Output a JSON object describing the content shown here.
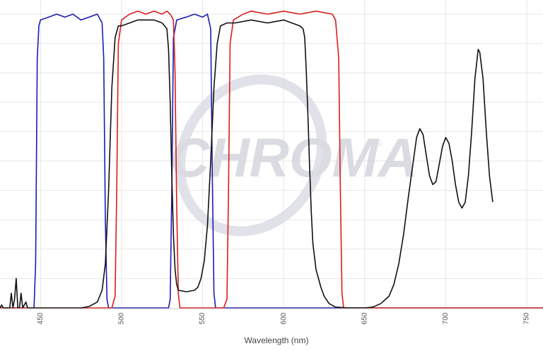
{
  "chart_data": {
    "type": "line",
    "xlabel": "Wavelength (nm)",
    "ylabel": "",
    "xlim": [
      425,
      760
    ],
    "ylim": [
      0,
      100
    ],
    "grid": true,
    "x_ticks": [
      {
        "value": 450,
        "label": "450"
      },
      {
        "value": 500,
        "label": "500"
      },
      {
        "value": 550,
        "label": "550"
      },
      {
        "value": 600,
        "label": "600"
      },
      {
        "value": 650,
        "label": "650"
      },
      {
        "value": 700,
        "label": "700"
      },
      {
        "value": 750,
        "label": "750"
      }
    ],
    "y_gridlines": [
      10,
      20,
      30,
      40,
      50,
      60,
      70,
      80,
      90,
      100
    ],
    "series": [
      {
        "color": "#1c1cb0",
        "points": [
          [
            425,
            0
          ],
          [
            446,
            0
          ],
          [
            447,
            15
          ],
          [
            448,
            85
          ],
          [
            449,
            96
          ],
          [
            450,
            98
          ],
          [
            455,
            99
          ],
          [
            460,
            100
          ],
          [
            465,
            99
          ],
          [
            470,
            100
          ],
          [
            475,
            98
          ],
          [
            480,
            99
          ],
          [
            485,
            100
          ],
          [
            488,
            97
          ],
          [
            489,
            85
          ],
          [
            490,
            30
          ],
          [
            491,
            3
          ],
          [
            492,
            0
          ],
          [
            529,
            0
          ],
          [
            530,
            3
          ],
          [
            531,
            40
          ],
          [
            532,
            92
          ],
          [
            534,
            98
          ],
          [
            540,
            99
          ],
          [
            545,
            100
          ],
          [
            550,
            99
          ],
          [
            553,
            100
          ],
          [
            555,
            95
          ],
          [
            556,
            45
          ],
          [
            557,
            5
          ],
          [
            558,
            0
          ],
          [
            760,
            0
          ]
        ]
      },
      {
        "color": "#dd1c1c",
        "points": [
          [
            425,
            0
          ],
          [
            494,
            0
          ],
          [
            496,
            4
          ],
          [
            497,
            40
          ],
          [
            498,
            90
          ],
          [
            500,
            98
          ],
          [
            505,
            100
          ],
          [
            510,
            101
          ],
          [
            515,
            100
          ],
          [
            520,
            101
          ],
          [
            525,
            100
          ],
          [
            528,
            101
          ],
          [
            530,
            100
          ],
          [
            532,
            98
          ],
          [
            533,
            80
          ],
          [
            534,
            35
          ],
          [
            535,
            5
          ],
          [
            536,
            0
          ],
          [
            563,
            0
          ],
          [
            565,
            3
          ],
          [
            566,
            40
          ],
          [
            567,
            90
          ],
          [
            569,
            98
          ],
          [
            575,
            100
          ],
          [
            580,
            101
          ],
          [
            590,
            100
          ],
          [
            600,
            101
          ],
          [
            610,
            100
          ],
          [
            620,
            101
          ],
          [
            630,
            100
          ],
          [
            632,
            98
          ],
          [
            634,
            85
          ],
          [
            635,
            40
          ],
          [
            636,
            5
          ],
          [
            637,
            0
          ],
          [
            760,
            0
          ]
        ]
      },
      {
        "color": "#111111",
        "points": [
          [
            425,
            0
          ],
          [
            426,
            1
          ],
          [
            427,
            0
          ],
          [
            431,
            0
          ],
          [
            432,
            5
          ],
          [
            433,
            0
          ],
          [
            434,
            3
          ],
          [
            435,
            10
          ],
          [
            436,
            0
          ],
          [
            437,
            0
          ],
          [
            438,
            5
          ],
          [
            439,
            0
          ],
          [
            441,
            2
          ],
          [
            442,
            0
          ],
          [
            460,
            0
          ],
          [
            475,
            0
          ],
          [
            480,
            0.5
          ],
          [
            485,
            2
          ],
          [
            488,
            6
          ],
          [
            490,
            15
          ],
          [
            492,
            40
          ],
          [
            494,
            75
          ],
          [
            496,
            92
          ],
          [
            498,
            96
          ],
          [
            500,
            96
          ],
          [
            505,
            97
          ],
          [
            510,
            98
          ],
          [
            520,
            98
          ],
          [
            525,
            97
          ],
          [
            528,
            95
          ],
          [
            529,
            88
          ],
          [
            530,
            70
          ],
          [
            531,
            45
          ],
          [
            532,
            25
          ],
          [
            533,
            13
          ],
          [
            534,
            8
          ],
          [
            535,
            6
          ],
          [
            540,
            5.5
          ],
          [
            545,
            6
          ],
          [
            547,
            7
          ],
          [
            549,
            10
          ],
          [
            551,
            16
          ],
          [
            553,
            28
          ],
          [
            555,
            50
          ],
          [
            557,
            75
          ],
          [
            559,
            90
          ],
          [
            561,
            96
          ],
          [
            565,
            97
          ],
          [
            570,
            97
          ],
          [
            580,
            98
          ],
          [
            590,
            97
          ],
          [
            600,
            98
          ],
          [
            605,
            97
          ],
          [
            610,
            96
          ],
          [
            612,
            95
          ],
          [
            613,
            92
          ],
          [
            614,
            80
          ],
          [
            615,
            65
          ],
          [
            616,
            48
          ],
          [
            617,
            33
          ],
          [
            618,
            22
          ],
          [
            620,
            13
          ],
          [
            623,
            7
          ],
          [
            625,
            4
          ],
          [
            628,
            1.5
          ],
          [
            632,
            0.3
          ],
          [
            640,
            0
          ],
          [
            650,
            0
          ],
          [
            655,
            0.3
          ],
          [
            660,
            1.5
          ],
          [
            665,
            4
          ],
          [
            668,
            8
          ],
          [
            671,
            15
          ],
          [
            674,
            25
          ],
          [
            677,
            38
          ],
          [
            680,
            50
          ],
          [
            682,
            58
          ],
          [
            684,
            61
          ],
          [
            686,
            59
          ],
          [
            688,
            52
          ],
          [
            690,
            45
          ],
          [
            692,
            42
          ],
          [
            694,
            43
          ],
          [
            696,
            49
          ],
          [
            698,
            55
          ],
          [
            700,
            58
          ],
          [
            702,
            56
          ],
          [
            704,
            50
          ],
          [
            706,
            42
          ],
          [
            708,
            36
          ],
          [
            710,
            34
          ],
          [
            712,
            36
          ],
          [
            714,
            45
          ],
          [
            716,
            60
          ],
          [
            718,
            78
          ],
          [
            720,
            88
          ],
          [
            721,
            87
          ],
          [
            723,
            78
          ],
          [
            725,
            60
          ],
          [
            727,
            45
          ],
          [
            729,
            36
          ]
        ]
      }
    ]
  }
}
